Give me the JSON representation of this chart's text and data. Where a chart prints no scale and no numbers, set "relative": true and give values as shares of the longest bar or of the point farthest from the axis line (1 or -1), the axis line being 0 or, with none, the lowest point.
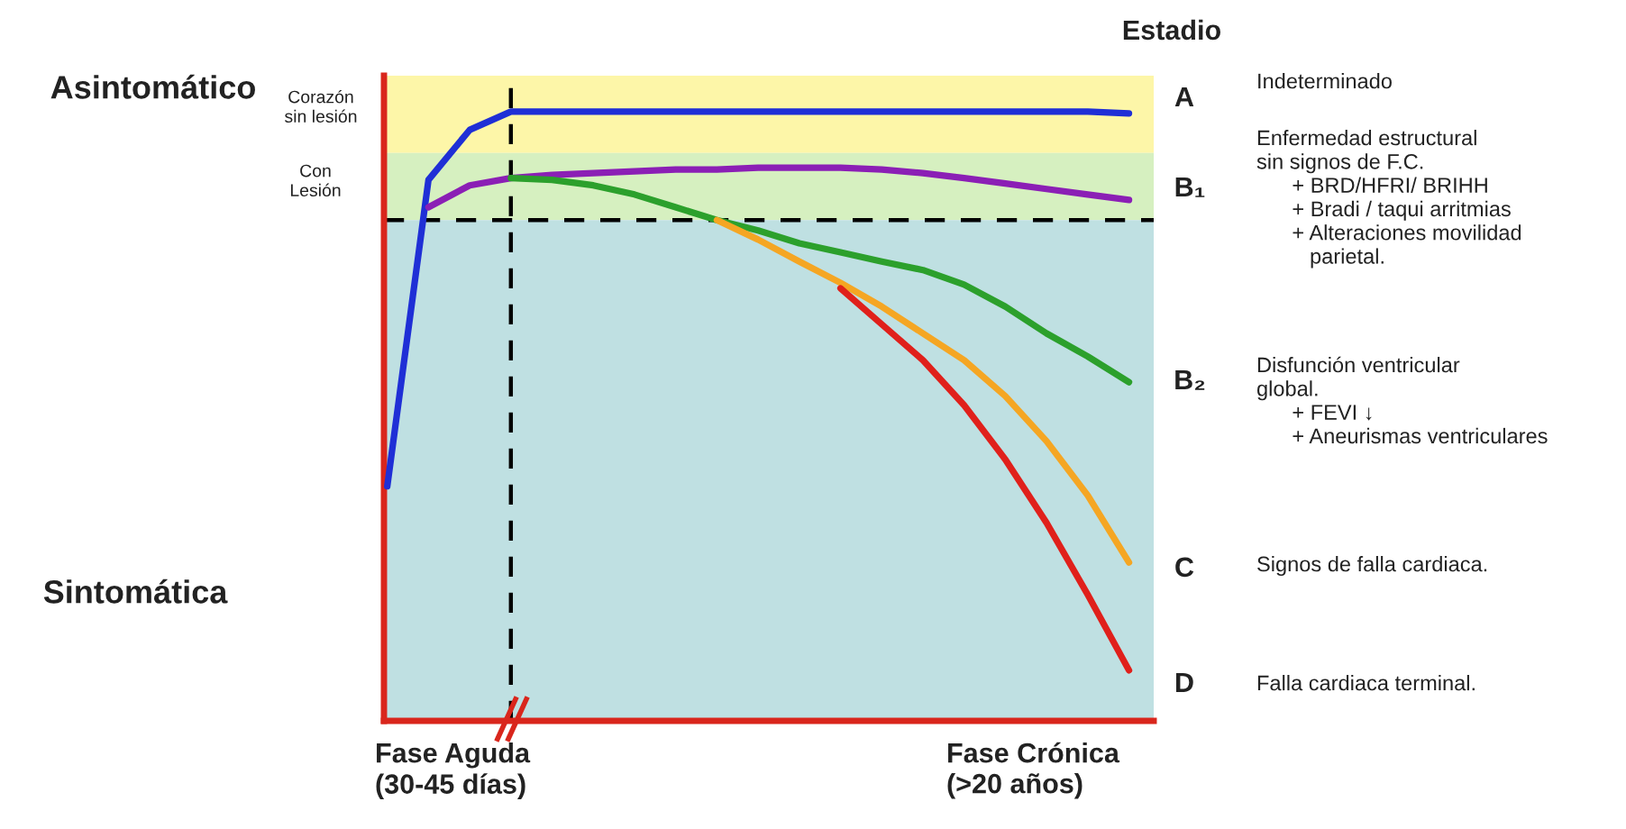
{
  "chart_data": {
    "type": "line",
    "relative": true,
    "grid": false,
    "legend": false,
    "marker": "none",
    "line_style": "solid",
    "categories": [
      null,
      null,
      null,
      null,
      null,
      null,
      null,
      null,
      null,
      null,
      null,
      null,
      null,
      null,
      null,
      null,
      null,
      null,
      null
    ],
    "series": [
      {
        "color": "#1f2fd6",
        "values": [
          0.385,
          0.888,
          0.97,
          1.0,
          1.0,
          1.0,
          1.0,
          1.0,
          1.0,
          1.0,
          1.0,
          1.0,
          1.0,
          1.0,
          1.0,
          1.0,
          1.0,
          1.0,
          0.997
        ]
      },
      {
        "color": "#8b1fb5",
        "values": [
          null,
          0.843,
          0.879,
          0.891,
          0.896,
          0.899,
          0.902,
          0.905,
          0.905,
          0.908,
          0.908,
          0.908,
          0.905,
          0.899,
          0.891,
          0.882,
          0.873,
          0.864,
          0.855
        ]
      },
      {
        "color": "#2ca02c",
        "values": [
          null,
          null,
          null,
          0.891,
          0.888,
          0.879,
          0.864,
          0.843,
          0.822,
          0.805,
          0.784,
          0.769,
          0.754,
          0.74,
          0.716,
          0.68,
          0.636,
          0.598,
          0.556
        ]
      },
      {
        "color": "#f5a623",
        "values": [
          null,
          null,
          null,
          null,
          null,
          null,
          null,
          null,
          0.822,
          0.79,
          0.754,
          0.719,
          0.68,
          0.636,
          0.592,
          0.533,
          0.459,
          0.37,
          0.26
        ]
      },
      {
        "color": "#e0201b",
        "values": [
          null,
          null,
          null,
          null,
          null,
          null,
          null,
          null,
          null,
          null,
          null,
          0.71,
          0.651,
          0.592,
          0.518,
          0.429,
          0.325,
          0.207,
          0.083
        ]
      }
    ],
    "bands": [
      {
        "axis": "y",
        "from": 0.932,
        "to": 1.059,
        "color": "#fdf6a8"
      },
      {
        "axis": "y",
        "from": 0.822,
        "to": 0.932,
        "color": "#d6f0c0"
      },
      {
        "axis": "y",
        "from": 0,
        "to": 0.822,
        "color": "#bfe0e2"
      }
    ],
    "ref_lines": [
      {
        "axis": "y",
        "value": 0.822,
        "color": "#000000",
        "line_style": "dashed"
      }
    ],
    "annotations": [
      "Asintomático",
      "Sintomática",
      "Corazón\nsin lesión",
      "Con\nLesión",
      "Estadio",
      "A",
      "B₁",
      "B₂",
      "C",
      "D",
      "Indeterminado",
      "Enfermedad estructural\nsin signos de F.C.\n      + BRD/HFRI/ BRIHH\n      + Bradi / taqui arritmias\n      + Alteraciones movilidad\n         parietal.",
      "Disfunción ventricular\nglobal.\n      + FEVI ↓\n      + Aneurismas ventriculares",
      "Signos de falla cardiaca.",
      "Falla cardiaca terminal.",
      "Fase Aguda\n(30-45 días)",
      "Fase Crónica\n(>20 años)"
    ]
  }
}
